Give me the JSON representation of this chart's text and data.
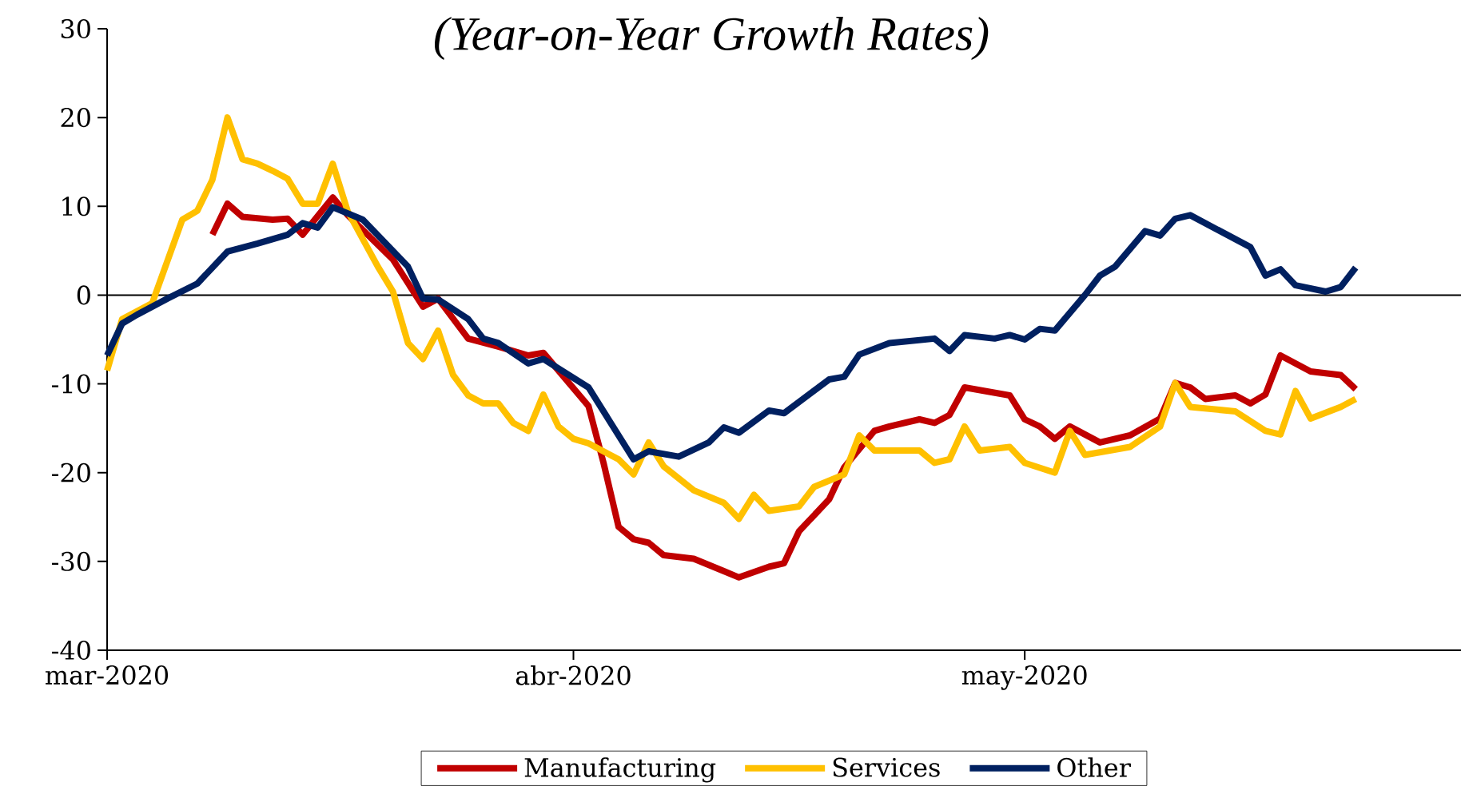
{
  "chart_data": {
    "type": "line",
    "subtitle": "*(Year-on-Year Growth Rates)*",
    "xlim": [
      "2020-03-01",
      "2020-05-30"
    ],
    "xticks": [
      {
        "value": "2020-03-01",
        "label": "mar-2020"
      },
      {
        "value": "2020-04-01",
        "label": "abr-2020"
      },
      {
        "value": "2020-05-01",
        "label": "may-2020"
      }
    ],
    "ylim": [
      -40,
      30
    ],
    "yticks": [
      -40,
      -30,
      -20,
      -10,
      0,
      10,
      20,
      30
    ],
    "legend": "bottom",
    "ref_lines": [
      {
        "axis": "y",
        "value": 0,
        "color": "#000000"
      }
    ],
    "series": [
      {
        "name": "Manufacturing",
        "color": "#c00000",
        "x": [
          "2020-03-08",
          "2020-03-09",
          "2020-03-10",
          "2020-03-12",
          "2020-03-13",
          "2020-03-14",
          "2020-03-16",
          "2020-03-17",
          "2020-03-20",
          "2020-03-22",
          "2020-03-23",
          "2020-03-25",
          "2020-03-27",
          "2020-03-29",
          "2020-03-30",
          "2020-04-02",
          "2020-04-03",
          "2020-04-04",
          "2020-04-05",
          "2020-04-06",
          "2020-04-07",
          "2020-04-09",
          "2020-04-11",
          "2020-04-12",
          "2020-04-14",
          "2020-04-15",
          "2020-04-16",
          "2020-04-18",
          "2020-04-19",
          "2020-04-21",
          "2020-04-22",
          "2020-04-24",
          "2020-04-25",
          "2020-04-26",
          "2020-04-27",
          "2020-04-30",
          "2020-05-01",
          "2020-05-02",
          "2020-05-03",
          "2020-05-04",
          "2020-05-06",
          "2020-05-08",
          "2020-05-10",
          "2020-05-11",
          "2020-05-12",
          "2020-05-13",
          "2020-05-15",
          "2020-05-16",
          "2020-05-17",
          "2020-05-18",
          "2020-05-20",
          "2020-05-22",
          "2020-05-23"
        ],
        "values": [
          6.8,
          10.3,
          8.8,
          8.5,
          8.6,
          6.8,
          11.0,
          9.0,
          4.0,
          -1.3,
          -0.4,
          -4.9,
          -5.8,
          -6.8,
          -6.5,
          -12.5,
          -18.9,
          -26.1,
          -27.5,
          -27.9,
          -29.3,
          -29.7,
          -31.1,
          -31.8,
          -30.6,
          -30.2,
          -26.6,
          -23.0,
          -19.4,
          -15.3,
          -14.8,
          -14.0,
          -14.4,
          -13.5,
          -10.4,
          -11.3,
          -14.0,
          -14.8,
          -16.2,
          -14.8,
          -16.6,
          -15.8,
          -13.9,
          -9.9,
          -10.4,
          -11.7,
          -11.3,
          -12.2,
          -11.2,
          -6.8,
          -8.6,
          -9.0,
          -10.6
        ]
      },
      {
        "name": "Services",
        "color": "#ffc000",
        "x": [
          "2020-03-01",
          "2020-03-02",
          "2020-03-04",
          "2020-03-06",
          "2020-03-07",
          "2020-03-08",
          "2020-03-09",
          "2020-03-10",
          "2020-03-11",
          "2020-03-12",
          "2020-03-13",
          "2020-03-14",
          "2020-03-15",
          "2020-03-16",
          "2020-03-17",
          "2020-03-19",
          "2020-03-20",
          "2020-03-21",
          "2020-03-22",
          "2020-03-23",
          "2020-03-24",
          "2020-03-25",
          "2020-03-26",
          "2020-03-27",
          "2020-03-28",
          "2020-03-29",
          "2020-03-30",
          "2020-03-31",
          "2020-04-01",
          "2020-04-02",
          "2020-04-04",
          "2020-04-05",
          "2020-04-06",
          "2020-04-07",
          "2020-04-09",
          "2020-04-11",
          "2020-04-12",
          "2020-04-13",
          "2020-04-14",
          "2020-04-16",
          "2020-04-17",
          "2020-04-19",
          "2020-04-20",
          "2020-04-21",
          "2020-04-24",
          "2020-04-25",
          "2020-04-26",
          "2020-04-27",
          "2020-04-28",
          "2020-04-30",
          "2020-05-01",
          "2020-05-03",
          "2020-05-04",
          "2020-05-05",
          "2020-05-08",
          "2020-05-10",
          "2020-05-11",
          "2020-05-12",
          "2020-05-15",
          "2020-05-17",
          "2020-05-18",
          "2020-05-19",
          "2020-05-20",
          "2020-05-22",
          "2020-05-23"
        ],
        "values": [
          -8.5,
          -2.7,
          -0.9,
          8.5,
          9.5,
          13.0,
          20.0,
          15.3,
          14.8,
          14.0,
          13.1,
          10.3,
          10.3,
          14.8,
          9.4,
          3.2,
          0.4,
          -5.4,
          -7.2,
          -4.0,
          -9.0,
          -11.3,
          -12.2,
          -12.2,
          -14.4,
          -15.3,
          -11.2,
          -14.8,
          -16.2,
          -16.7,
          -18.5,
          -20.2,
          -16.6,
          -19.3,
          -22.0,
          -23.4,
          -25.2,
          -22.5,
          -24.3,
          -23.8,
          -21.6,
          -20.2,
          -15.8,
          -17.5,
          -17.5,
          -18.9,
          -18.5,
          -14.8,
          -17.5,
          -17.1,
          -18.9,
          -20.0,
          -15.3,
          -18.0,
          -17.1,
          -14.8,
          -9.9,
          -12.6,
          -13.1,
          -15.3,
          -15.7,
          -10.8,
          -13.9,
          -12.6,
          -11.7
        ]
      },
      {
        "name": "Other",
        "color": "#002060",
        "x": [
          "2020-03-01",
          "2020-03-02",
          "2020-03-03",
          "2020-03-05",
          "2020-03-07",
          "2020-03-09",
          "2020-03-11",
          "2020-03-13",
          "2020-03-14",
          "2020-03-15",
          "2020-03-16",
          "2020-03-18",
          "2020-03-21",
          "2020-03-22",
          "2020-03-23",
          "2020-03-25",
          "2020-03-26",
          "2020-03-27",
          "2020-03-29",
          "2020-03-30",
          "2020-04-02",
          "2020-04-05",
          "2020-04-06",
          "2020-04-08",
          "2020-04-10",
          "2020-04-11",
          "2020-04-12",
          "2020-04-14",
          "2020-04-15",
          "2020-04-18",
          "2020-04-19",
          "2020-04-20",
          "2020-04-22",
          "2020-04-25",
          "2020-04-26",
          "2020-04-27",
          "2020-04-29",
          "2020-04-30",
          "2020-05-01",
          "2020-05-02",
          "2020-05-03",
          "2020-05-05",
          "2020-05-06",
          "2020-05-07",
          "2020-05-09",
          "2020-05-10",
          "2020-05-11",
          "2020-05-12",
          "2020-05-14",
          "2020-05-16",
          "2020-05-17",
          "2020-05-18",
          "2020-05-19",
          "2020-05-21",
          "2020-05-22",
          "2020-05-23"
        ],
        "values": [
          -6.8,
          -3.2,
          -2.2,
          -0.4,
          1.3,
          4.9,
          5.8,
          6.8,
          8.1,
          7.6,
          9.9,
          8.5,
          3.2,
          -0.4,
          -0.5,
          -2.7,
          -4.9,
          -5.4,
          -7.7,
          -7.2,
          -10.4,
          -18.5,
          -17.6,
          -18.2,
          -16.6,
          -14.9,
          -15.5,
          -13.0,
          -13.3,
          -9.5,
          -9.2,
          -6.7,
          -5.4,
          -4.9,
          -6.3,
          -4.5,
          -4.9,
          -4.5,
          -5.0,
          -3.8,
          -4.0,
          0,
          2.2,
          3.2,
          7.2,
          6.7,
          8.6,
          9.0,
          7.2,
          5.4,
          2.2,
          2.9,
          1.1,
          0.4,
          0.9,
          3.1
        ]
      }
    ]
  }
}
